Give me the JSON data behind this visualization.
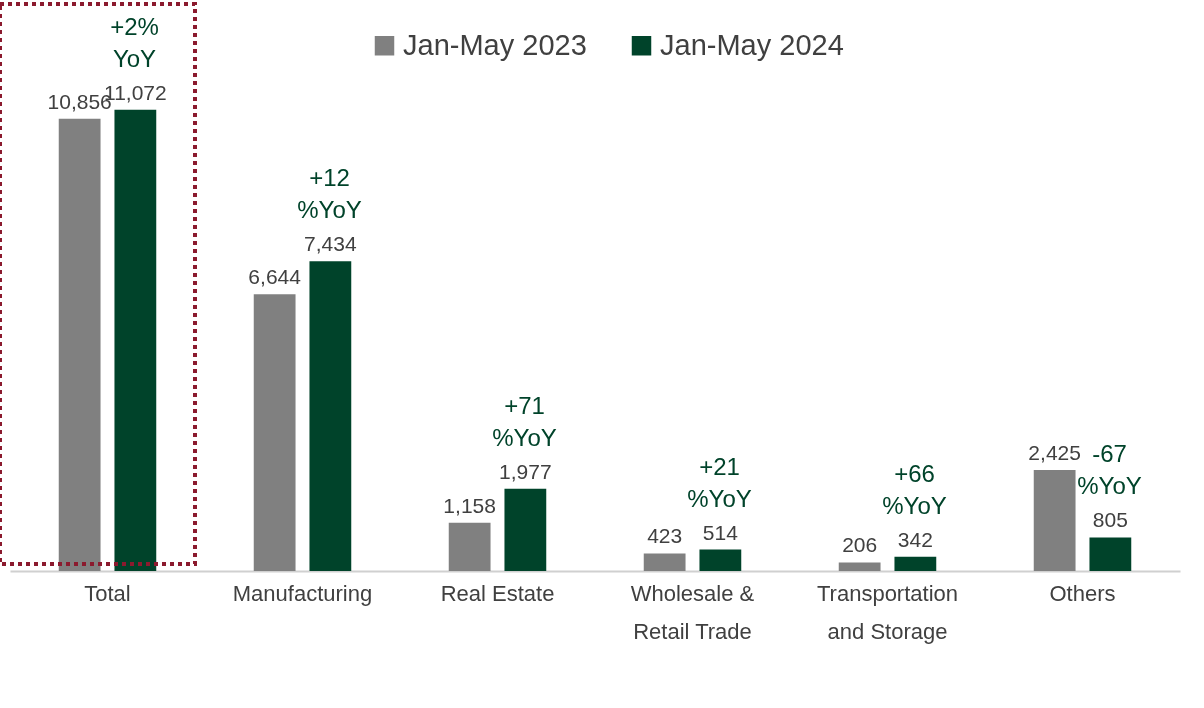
{
  "chart_data": {
    "type": "bar",
    "categories": [
      "Total",
      "Manufacturing",
      "Real Estate",
      "Wholesale &\nRetail Trade",
      "Transportation\nand Storage",
      "Others"
    ],
    "series": [
      {
        "name": "Jan-May 2023",
        "color": "#808080",
        "values": [
          10856,
          6644,
          1158,
          423,
          206,
          2425
        ],
        "value_labels": [
          "10,856",
          "6,644",
          "1,158",
          "423",
          "206",
          "2,425"
        ]
      },
      {
        "name": "Jan-May 2024",
        "color": "#00432a",
        "values": [
          11072,
          7434,
          1977,
          514,
          342,
          805
        ],
        "value_labels": [
          "11,072",
          "7,434",
          "1,977",
          "514",
          "342",
          "805"
        ]
      }
    ],
    "legend": "top",
    "grid": false,
    "annotations": [
      "+2%\nYoY",
      "+12\n%YoY",
      "+71\n%YoY",
      "+21\n%YoY",
      "+66\n%YoY",
      "-67\n%YoY"
    ]
  }
}
